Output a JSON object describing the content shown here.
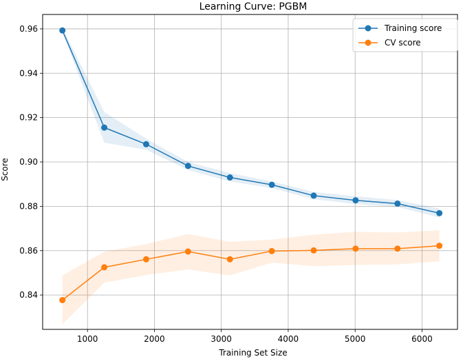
{
  "chart_data": {
    "type": "line",
    "title": "Learning Curve: PGBM",
    "xlabel": "Training Set Size",
    "ylabel": "Score",
    "xlim": [
      330,
      6530
    ],
    "ylim": [
      0.8245,
      0.9665
    ],
    "xticks": [
      1000,
      2000,
      3000,
      4000,
      5000,
      6000
    ],
    "yticks": [
      0.84,
      0.86,
      0.88,
      0.9,
      0.92,
      0.94,
      0.96
    ],
    "ytick_labels": [
      "0.84",
      "0.86",
      "0.88",
      "0.90",
      "0.92",
      "0.94",
      "0.96"
    ],
    "grid": true,
    "legend_position": "top-right",
    "x": [
      625,
      1251,
      1877,
      2503,
      3129,
      3755,
      4381,
      5007,
      5633,
      6259
    ],
    "series": [
      {
        "name": "Training score",
        "color": "#1f77b4",
        "values": [
          0.9593,
          0.9155,
          0.908,
          0.8982,
          0.893,
          0.8897,
          0.8848,
          0.8827,
          0.8812,
          0.8769
        ],
        "band_upper": [
          0.9605,
          0.9225,
          0.9105,
          0.9,
          0.895,
          0.8912,
          0.8865,
          0.8845,
          0.8828,
          0.879
        ],
        "band_lower": [
          0.9585,
          0.9087,
          0.9055,
          0.8964,
          0.8912,
          0.8882,
          0.8832,
          0.881,
          0.8797,
          0.875
        ]
      },
      {
        "name": "CV score",
        "color": "#ff7f0e",
        "values": [
          0.8377,
          0.8525,
          0.8561,
          0.8596,
          0.8561,
          0.8598,
          0.8601,
          0.8609,
          0.8609,
          0.8622
        ],
        "band_upper": [
          0.8488,
          0.8595,
          0.863,
          0.8675,
          0.864,
          0.865,
          0.8672,
          0.8685,
          0.8682,
          0.8692
        ],
        "band_lower": [
          0.8268,
          0.8455,
          0.849,
          0.8515,
          0.8488,
          0.8546,
          0.853,
          0.8535,
          0.8538,
          0.8552
        ]
      }
    ]
  }
}
